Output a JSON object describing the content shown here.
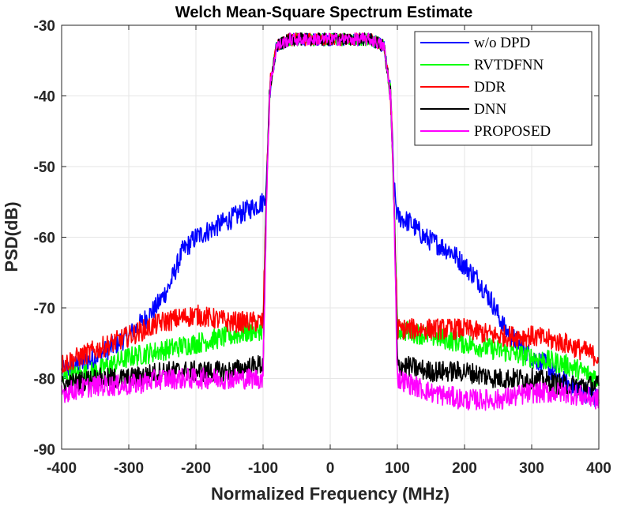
{
  "chart_data": {
    "type": "line",
    "title": "Welch Mean-Square Spectrum Estimate",
    "xlabel": "Normalized Frequency (MHz)",
    "ylabel": "PSD(dB)",
    "xlim": [
      -400,
      400
    ],
    "ylim": [
      -90,
      -30
    ],
    "xticks": [
      -400,
      -300,
      -200,
      -100,
      0,
      100,
      200,
      300,
      400
    ],
    "yticks": [
      -90,
      -80,
      -70,
      -60,
      -50,
      -40,
      -30
    ],
    "grid": true,
    "legend_position": "top-right",
    "series": [
      {
        "name": "w/o DPD",
        "color": "#0000ff",
        "x": [
          -400,
          -350,
          -300,
          -280,
          -260,
          -240,
          -220,
          -200,
          -180,
          -160,
          -140,
          -120,
          -100,
          -95,
          -90,
          -80,
          -60,
          -40,
          -20,
          0,
          20,
          40,
          60,
          80,
          90,
          95,
          100,
          120,
          140,
          160,
          180,
          200,
          220,
          240,
          260,
          280,
          300,
          320,
          340,
          360,
          380,
          400
        ],
        "y": [
          -79,
          -77,
          -74,
          -72,
          -70,
          -67,
          -62,
          -60,
          -59,
          -58,
          -57,
          -56,
          -55,
          -53,
          -39,
          -33,
          -32,
          -32,
          -32,
          -32,
          -32,
          -32,
          -32,
          -33,
          -40,
          -53,
          -57,
          -58,
          -60,
          -61,
          -62,
          -64,
          -66,
          -69,
          -73,
          -75,
          -77,
          -78,
          -80,
          -81,
          -82,
          -83
        ]
      },
      {
        "name": "RVTDFNN",
        "color": "#00ff00",
        "x": [
          -400,
          -350,
          -300,
          -250,
          -200,
          -150,
          -100,
          -95,
          -90,
          -80,
          -60,
          -40,
          -20,
          0,
          20,
          40,
          60,
          80,
          90,
          95,
          100,
          150,
          200,
          250,
          300,
          350,
          400
        ],
        "y": [
          -80,
          -79,
          -77,
          -76,
          -75,
          -74,
          -73,
          -54,
          -39,
          -33,
          -32,
          -32,
          -32,
          -32,
          -32,
          -32,
          -32,
          -33,
          -40,
          -55,
          -73,
          -74,
          -75,
          -76,
          -77,
          -78,
          -80
        ]
      },
      {
        "name": "DDR",
        "color": "#ff0000",
        "x": [
          -400,
          -350,
          -300,
          -250,
          -200,
          -150,
          -100,
          -95,
          -90,
          -80,
          -60,
          -40,
          -20,
          0,
          20,
          40,
          60,
          80,
          90,
          95,
          100,
          150,
          200,
          250,
          300,
          350,
          400
        ],
        "y": [
          -78,
          -76,
          -74,
          -72,
          -71,
          -72,
          -72,
          -54,
          -39,
          -33,
          -32,
          -32,
          -32,
          -32,
          -32,
          -32,
          -32,
          -33,
          -40,
          -55,
          -73,
          -73,
          -73,
          -74,
          -74,
          -75,
          -77
        ]
      },
      {
        "name": "DNN",
        "color": "#000000",
        "x": [
          -400,
          -350,
          -300,
          -250,
          -200,
          -150,
          -100,
          -95,
          -90,
          -80,
          -60,
          -40,
          -20,
          0,
          20,
          40,
          60,
          80,
          90,
          95,
          100,
          150,
          200,
          250,
          300,
          350,
          400
        ],
        "y": [
          -81,
          -80,
          -80,
          -79,
          -79,
          -79,
          -78,
          -54,
          -39,
          -33,
          -32,
          -32,
          -32,
          -32,
          -32,
          -32,
          -32,
          -33,
          -40,
          -55,
          -78,
          -79,
          -79,
          -80,
          -80,
          -81,
          -81
        ]
      },
      {
        "name": "PROPOSED",
        "color": "#ff00ff",
        "x": [
          -400,
          -350,
          -300,
          -250,
          -200,
          -150,
          -100,
          -95,
          -90,
          -80,
          -60,
          -40,
          -20,
          0,
          20,
          40,
          60,
          80,
          90,
          95,
          100,
          150,
          200,
          250,
          300,
          350,
          400
        ],
        "y": [
          -82,
          -81,
          -81,
          -80,
          -80,
          -80,
          -80,
          -55,
          -39,
          -33,
          -32,
          -32,
          -32,
          -32,
          -32,
          -32,
          -32,
          -33,
          -40,
          -55,
          -80,
          -82,
          -83,
          -83,
          -82,
          -82,
          -83
        ]
      }
    ]
  }
}
